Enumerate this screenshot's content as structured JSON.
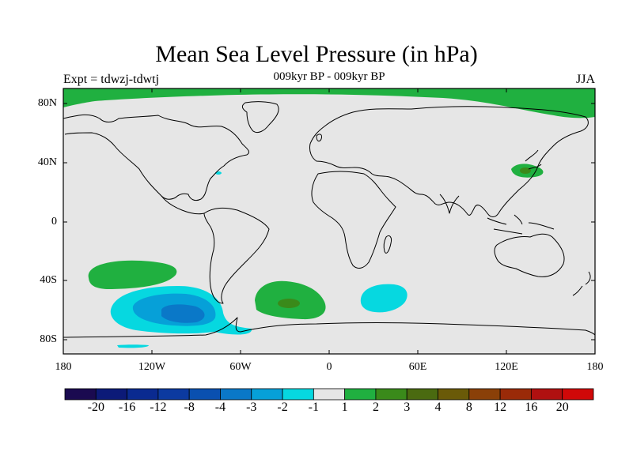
{
  "title": "Mean Sea Level Pressure (in hPa)",
  "subtitle": "009kyr BP - 009kyr BP",
  "left_label": "Expt = tdwzj-tdwtj",
  "right_label": "JJA",
  "axes": {
    "lat_ticks": [
      {
        "value": 80,
        "label": "80N"
      },
      {
        "value": 40,
        "label": "40N"
      },
      {
        "value": 0,
        "label": "0"
      },
      {
        "value": -40,
        "label": "40S"
      },
      {
        "value": -80,
        "label": "80S"
      }
    ],
    "lon_ticks": [
      {
        "value": -180,
        "label": "180"
      },
      {
        "value": -120,
        "label": "120W"
      },
      {
        "value": -60,
        "label": "60W"
      },
      {
        "value": 0,
        "label": "0"
      },
      {
        "value": 60,
        "label": "60E"
      },
      {
        "value": 120,
        "label": "120E"
      },
      {
        "value": 180,
        "label": "180"
      }
    ]
  },
  "colorbar": {
    "colors": [
      "#1a0a50",
      "#0c1a78",
      "#0a2a90",
      "#0c3aa0",
      "#0a50b0",
      "#0a78c8",
      "#06a0d8",
      "#06d8e0",
      "#e6e6e6",
      "#20b040",
      "#3a8a1a",
      "#4a6a10",
      "#6a5a08",
      "#8a4008",
      "#9a2a08",
      "#b01010",
      "#d00808"
    ],
    "labels": [
      "-20",
      "-16",
      "-12",
      "-8",
      "-4",
      "-3",
      "-2",
      "-1",
      "1",
      "2",
      "3",
      "4",
      "8",
      "12",
      "16",
      "20"
    ]
  },
  "chart_data": {
    "type": "heatmap",
    "title": "Mean Sea Level Pressure (in hPa)",
    "subtitle": "009kyr BP - 009kyr BP",
    "projection": "cylindrical equidistant",
    "xlim": [
      -180,
      180
    ],
    "ylim": [
      -90,
      90
    ],
    "levels": [
      -20,
      -16,
      -12,
      -8,
      -4,
      -3,
      -2,
      -1,
      1,
      2,
      3,
      4,
      8,
      12,
      16,
      20
    ],
    "background_class": "-1 to 1",
    "regions": [
      {
        "name": "Arctic",
        "lon_range": [
          -180,
          180
        ],
        "lat_range": [
          75,
          90
        ],
        "class": "1 to 2"
      },
      {
        "name": "South Pacific high",
        "center": [
          -135,
          -35
        ],
        "class": "1 to 2"
      },
      {
        "name": "Southeast Pacific low",
        "center": [
          -100,
          -62
        ],
        "classes": [
          "-1 to -2",
          "-2 to -3",
          "-3 to -4"
        ],
        "min_class": "-3 to -4"
      },
      {
        "name": "South Atlantic high",
        "center": [
          -27,
          -55
        ],
        "classes": [
          "1 to 2",
          "2 to 3"
        ],
        "max_class": "2 to 3"
      },
      {
        "name": "South Indian low",
        "center": [
          47,
          -52
        ],
        "class": "-1 to -2"
      },
      {
        "name": "Japan high",
        "center": [
          137,
          34
        ],
        "classes": [
          "1 to 2",
          "2 to 3"
        ]
      },
      {
        "name": "Northwest Atlantic low",
        "center": [
          -77,
          34
        ],
        "class": "-1 to -2"
      }
    ]
  }
}
